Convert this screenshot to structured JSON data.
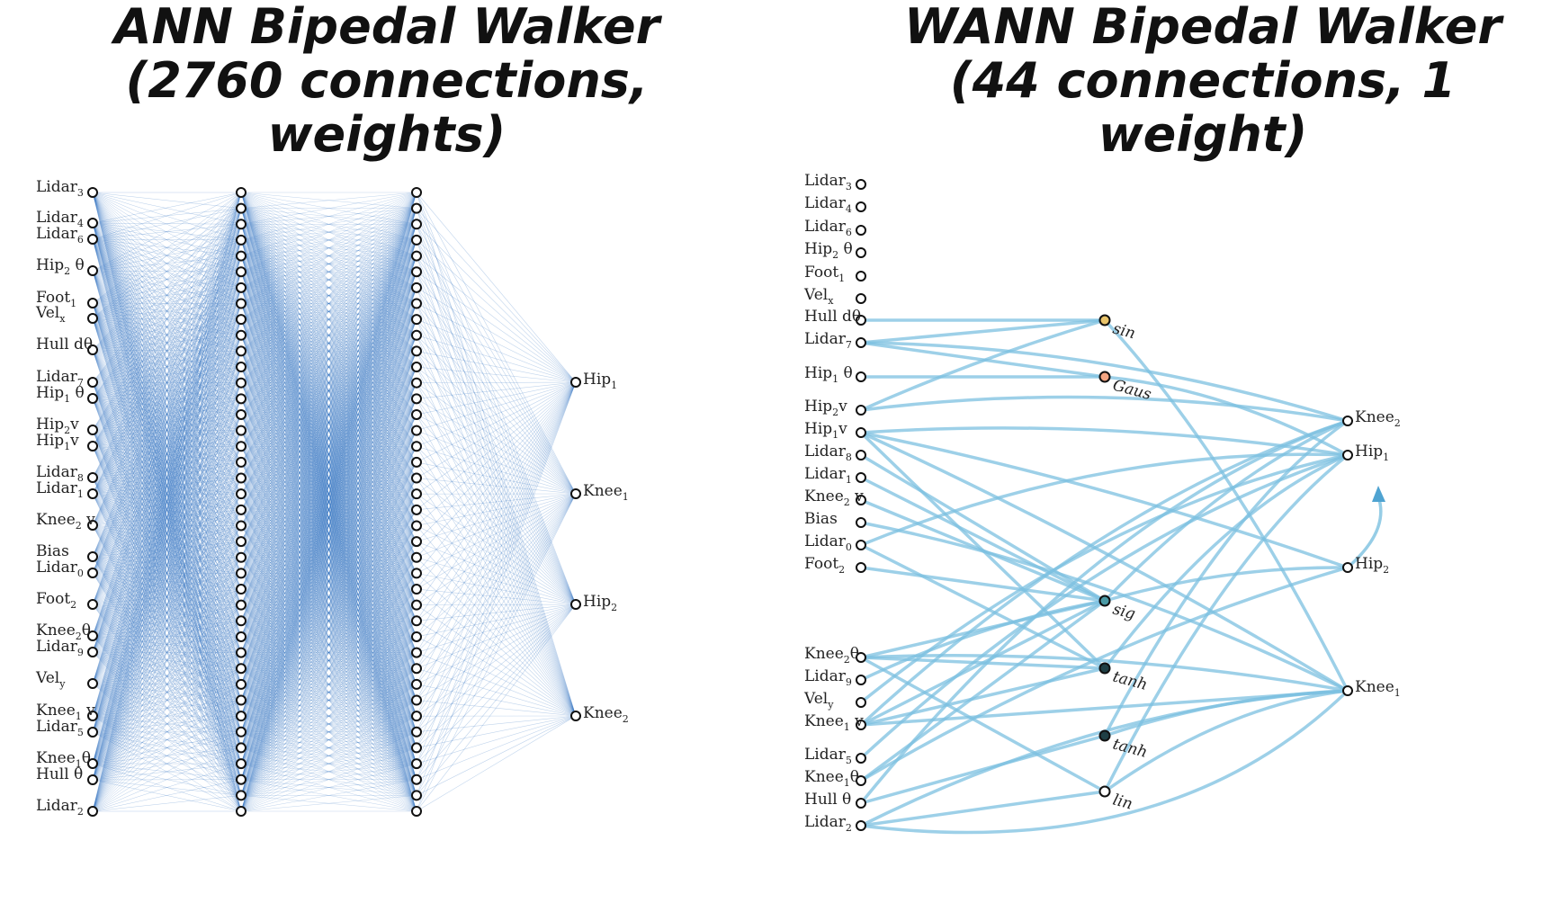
{
  "left_panel": {
    "title_line1": "ANN Bipedal Walker",
    "title_line2": "(2760 connections, weights)",
    "inputs": [
      {
        "base": "Lidar",
        "sub": "3",
        "post": ""
      },
      {
        "base": "Lidar",
        "sub": "4",
        "post": ""
      },
      {
        "base": "Lidar",
        "sub": "6",
        "post": ""
      },
      {
        "base": "Hip",
        "sub": "2",
        "post": " θ"
      },
      {
        "base": "Foot",
        "sub": "1",
        "post": ""
      },
      {
        "base": "Vel",
        "sub": "x",
        "post": ""
      },
      {
        "base": "Hull dθ",
        "sub": "",
        "post": ""
      },
      {
        "base": "Lidar",
        "sub": "7",
        "post": ""
      },
      {
        "base": "Hip",
        "sub": "1",
        "post": " θ"
      },
      {
        "base": "Hip",
        "sub": "2",
        "post": "v"
      },
      {
        "base": "Hip",
        "sub": "1",
        "post": "v"
      },
      {
        "base": "Lidar",
        "sub": "8",
        "post": ""
      },
      {
        "base": "Lidar",
        "sub": "1",
        "post": ""
      },
      {
        "base": "Knee",
        "sub": "2",
        "post": " v"
      },
      {
        "base": "Bias",
        "sub": "",
        "post": ""
      },
      {
        "base": "Lidar",
        "sub": "0",
        "post": ""
      },
      {
        "base": "Foot",
        "sub": "2",
        "post": ""
      },
      {
        "base": "Knee",
        "sub": "2",
        "post": "θ"
      },
      {
        "base": "Lidar",
        "sub": "9",
        "post": ""
      },
      {
        "base": "Vel",
        "sub": "y",
        "post": ""
      },
      {
        "base": "Knee",
        "sub": "1",
        "post": " v"
      },
      {
        "base": "Lidar",
        "sub": "5",
        "post": ""
      },
      {
        "base": "Knee",
        "sub": "1",
        "post": "θ"
      },
      {
        "base": "Hull θ",
        "sub": "",
        "post": ""
      },
      {
        "base": "Lidar",
        "sub": "2",
        "post": ""
      }
    ],
    "outputs": [
      {
        "base": "Hip",
        "sub": "1",
        "post": ""
      },
      {
        "base": "Knee",
        "sub": "1",
        "post": ""
      },
      {
        "base": "Hip",
        "sub": "2",
        "post": ""
      },
      {
        "base": "Knee",
        "sub": "2",
        "post": ""
      }
    ]
  },
  "right_panel": {
    "title_line1": "WANN Bipedal Walker",
    "title_line2": "(44 connections, 1 weight)",
    "inputs": [
      {
        "base": "Lidar",
        "sub": "3",
        "post": ""
      },
      {
        "base": "Lidar",
        "sub": "4",
        "post": ""
      },
      {
        "base": "Lidar",
        "sub": "6",
        "post": ""
      },
      {
        "base": "Hip",
        "sub": "2",
        "post": " θ"
      },
      {
        "base": "Foot",
        "sub": "1",
        "post": ""
      },
      {
        "base": "Vel",
        "sub": "x",
        "post": ""
      },
      {
        "base": "Hull dθ",
        "sub": "",
        "post": ""
      },
      {
        "base": "Lidar",
        "sub": "7",
        "post": ""
      },
      {
        "base": "Hip",
        "sub": "1",
        "post": " θ"
      },
      {
        "base": "Hip",
        "sub": "2",
        "post": "v"
      },
      {
        "base": "Hip",
        "sub": "1",
        "post": "v"
      },
      {
        "base": "Lidar",
        "sub": "8",
        "post": ""
      },
      {
        "base": "Lidar",
        "sub": "1",
        "post": ""
      },
      {
        "base": "Knee",
        "sub": "2",
        "post": " v"
      },
      {
        "base": "Bias",
        "sub": "",
        "post": ""
      },
      {
        "base": "Lidar",
        "sub": "0",
        "post": ""
      },
      {
        "base": "Foot",
        "sub": "2",
        "post": ""
      },
      {
        "base": "Knee",
        "sub": "2",
        "post": "θ"
      },
      {
        "base": "Lidar",
        "sub": "9",
        "post": ""
      },
      {
        "base": "Vel",
        "sub": "y",
        "post": ""
      },
      {
        "base": "Knee",
        "sub": "1",
        "post": " v"
      },
      {
        "base": "Lidar",
        "sub": "5",
        "post": ""
      },
      {
        "base": "Knee",
        "sub": "1",
        "post": "θ"
      },
      {
        "base": "Hull θ",
        "sub": "",
        "post": ""
      },
      {
        "base": "Lidar",
        "sub": "2",
        "post": ""
      }
    ],
    "hidden": [
      {
        "label": "sin",
        "color": "#e9c46a"
      },
      {
        "label": "Gaus",
        "color": "#f4a582"
      },
      {
        "label": "sig",
        "color": "#4a9aa5"
      },
      {
        "label": "tanh",
        "color": "#1f3f45"
      },
      {
        "label": "tanh",
        "color": "#1f3f45"
      },
      {
        "label": "lin",
        "color": "#ffffff"
      }
    ],
    "outputs": [
      {
        "base": "Knee",
        "sub": "2",
        "post": ""
      },
      {
        "base": "Hip",
        "sub": "1",
        "post": ""
      },
      {
        "base": "Hip",
        "sub": "2",
        "post": ""
      },
      {
        "base": "Knee",
        "sub": "1",
        "post": ""
      }
    ]
  },
  "colors": {
    "ann_edge": "#2f6fc0",
    "wann_edge": "#7cc0e0",
    "node_stroke": "#111111"
  }
}
